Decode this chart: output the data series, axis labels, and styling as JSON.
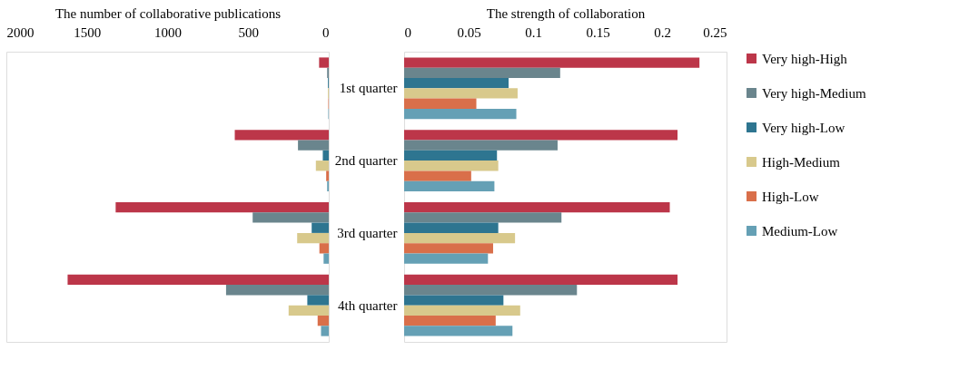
{
  "chart_data": [
    {
      "type": "bar",
      "orientation": "horizontal",
      "xlabel": "The number of collaborative publications",
      "categories": [
        null,
        null,
        null,
        null
      ],
      "xlim": [
        2000,
        0
      ],
      "xticks": [
        2000,
        1500,
        1000,
        500,
        0
      ],
      "grid": false,
      "legend": false,
      "tick_labels": "x",
      "series": [
        {
          "color": "#bc3649",
          "values": [
            60,
            583,
            1322,
            1620
          ]
        },
        {
          "color": "#6a858d",
          "values": [
            10,
            191,
            472,
            637
          ]
        },
        {
          "color": "#2e7590",
          "values": [
            5,
            37,
            106,
            133
          ]
        },
        {
          "color": "#d8c98c",
          "values": [
            5,
            80,
            196,
            249
          ]
        },
        {
          "color": "#d96f4a",
          "values": [
            3,
            16,
            58,
            69
          ]
        },
        {
          "color": "#65a0b5",
          "values": [
            3,
            10,
            32,
            48
          ]
        }
      ]
    },
    {
      "type": "bar",
      "orientation": "horizontal",
      "xlabel": "The strength of collaboration",
      "categories": [
        "1st quarter",
        "2nd quarter",
        "3rd quarter",
        "4th quarter"
      ],
      "xlim": [
        0,
        0.25
      ],
      "xticks": [
        0,
        0.05,
        0.1,
        0.15,
        0.2,
        0.25
      ],
      "grid": false,
      "legend": "right",
      "series": [
        {
          "name": "Very high-High",
          "color": "#bc3649",
          "values": [
            0.229,
            0.212,
            0.206,
            0.212
          ]
        },
        {
          "name": "Very high-Medium",
          "color": "#6a858d",
          "values": [
            0.121,
            0.119,
            0.122,
            0.134
          ]
        },
        {
          "name": "Very high-Low",
          "color": "#2e7590",
          "values": [
            0.081,
            0.072,
            0.073,
            0.077
          ]
        },
        {
          "name": "High-Medium",
          "color": "#d8c98c",
          "values": [
            0.088,
            0.073,
            0.086,
            0.09
          ]
        },
        {
          "name": "High-Low",
          "color": "#d96f4a",
          "values": [
            0.056,
            0.052,
            0.069,
            0.071
          ]
        },
        {
          "name": "Medium-Low",
          "color": "#65a0b5",
          "values": [
            0.087,
            0.07,
            0.065,
            0.084
          ]
        }
      ]
    }
  ]
}
